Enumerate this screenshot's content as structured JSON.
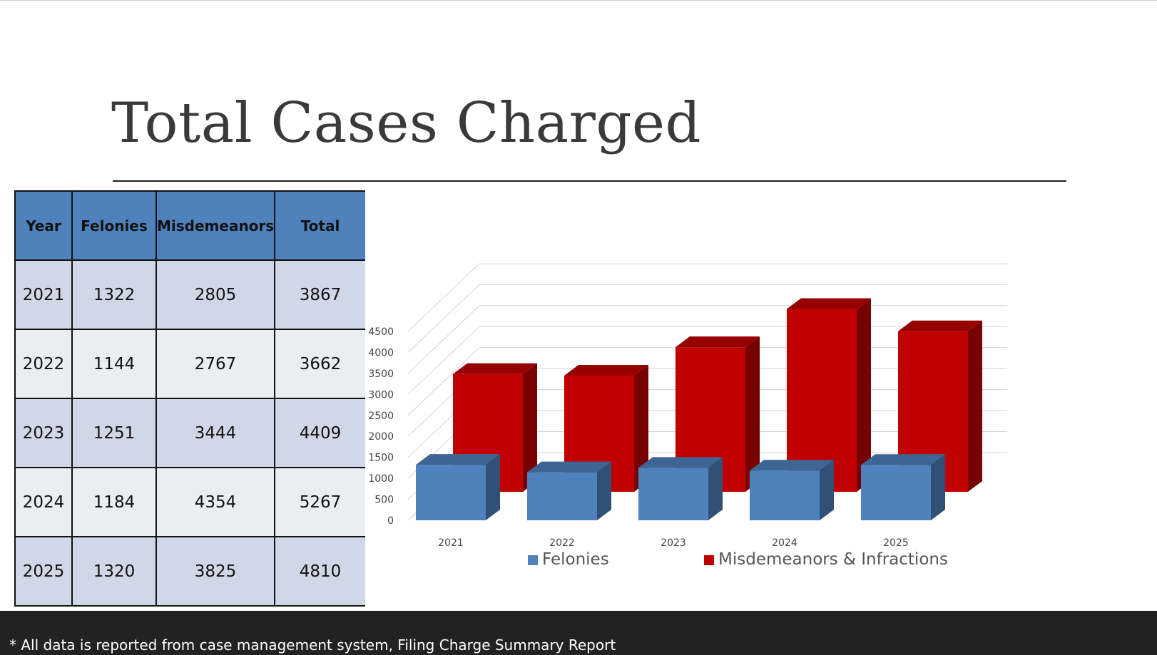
{
  "slide": {
    "title": "Total Cases Charged",
    "footnote": "* All data is reported from case management system, Filing Charge Summary Report"
  },
  "table": {
    "headers": [
      "Year",
      "Felonies",
      "Misdemeanors",
      "Total"
    ],
    "rows": [
      [
        "2021",
        "1322",
        "2805",
        "3867"
      ],
      [
        "2022",
        "1144",
        "2767",
        "3662"
      ],
      [
        "2023",
        "1251",
        "3444",
        "4409"
      ],
      [
        "2024",
        "1184",
        "4354",
        "5267"
      ],
      [
        "2025",
        "1320",
        "3825",
        "4810"
      ]
    ]
  },
  "chart_data": {
    "type": "bar",
    "style": "3d-clustered-depth",
    "categories": [
      "2021",
      "2022",
      "2023",
      "2024",
      "2025"
    ],
    "series": [
      {
        "name": "Felonies",
        "values": [
          1322,
          1144,
          1251,
          1184,
          1320
        ],
        "color": "#4f81bd"
      },
      {
        "name": "Misdemeanors & Infractions",
        "values": [
          2805,
          2767,
          3444,
          4354,
          3825
        ],
        "color": "#c00000"
      }
    ],
    "ylim": [
      0,
      4500
    ],
    "yticks": [
      0,
      500,
      1000,
      1500,
      2000,
      2500,
      3000,
      3500,
      4000,
      4500
    ],
    "grid": true,
    "legend": "bottom"
  }
}
